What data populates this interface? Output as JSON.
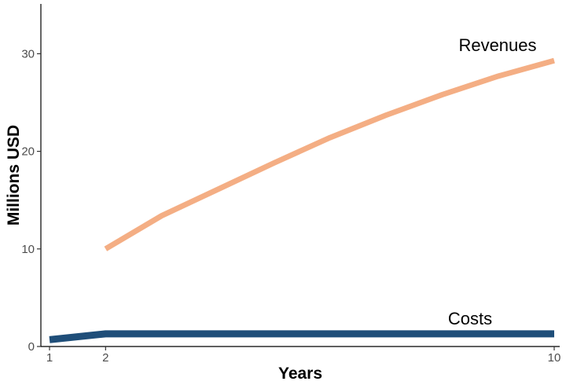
{
  "chart_data": {
    "type": "line",
    "xlabel": "Years",
    "ylabel": "Millions USD",
    "xlim": [
      1,
      10
    ],
    "ylim": [
      0,
      35
    ],
    "x_ticks": [
      1,
      2,
      10
    ],
    "y_ticks": [
      0,
      10,
      20,
      30
    ],
    "grid": false,
    "series": [
      {
        "name": "Revenues",
        "color": "#F4AE84",
        "x": [
          2,
          3,
          4,
          5,
          6,
          7,
          8,
          9,
          10
        ],
        "values": [
          10.0,
          13.4,
          16.1,
          18.8,
          21.4,
          23.7,
          25.8,
          27.7,
          29.3
        ]
      },
      {
        "name": "Costs",
        "color": "#1F4E79",
        "x": [
          1,
          2,
          3,
          4,
          5,
          6,
          7,
          8,
          9,
          10
        ],
        "values": [
          0.7,
          1.3,
          1.3,
          1.3,
          1.3,
          1.3,
          1.3,
          1.3,
          1.3,
          1.3
        ]
      }
    ]
  }
}
